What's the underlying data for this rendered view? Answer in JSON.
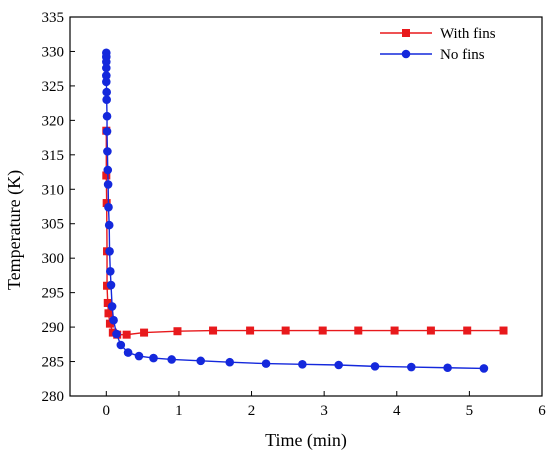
{
  "chart_data": {
    "type": "line",
    "title": "",
    "xlabel": "Time (min)",
    "ylabel": "Temperature (K)",
    "xlim": [
      -0.5,
      6
    ],
    "ylim": [
      280,
      335
    ],
    "xticks": [
      0,
      1,
      2,
      3,
      4,
      5,
      6
    ],
    "yticks": [
      280,
      285,
      290,
      295,
      300,
      305,
      310,
      315,
      320,
      325,
      330,
      335
    ],
    "grid": false,
    "legend_position": "top-right",
    "series": [
      {
        "name": "With fins",
        "color": "#e8191c",
        "marker": "square",
        "points": [
          [
            0.0,
            318.5
          ],
          [
            0.0,
            312.0
          ],
          [
            0.005,
            308.0
          ],
          [
            0.01,
            301.0
          ],
          [
            0.01,
            296.0
          ],
          [
            0.02,
            293.5
          ],
          [
            0.03,
            292.0
          ],
          [
            0.05,
            290.5
          ],
          [
            0.09,
            289.2
          ],
          [
            0.15,
            288.9
          ],
          [
            0.28,
            288.9
          ],
          [
            0.52,
            289.2
          ],
          [
            0.98,
            289.4
          ],
          [
            1.47,
            289.5
          ],
          [
            1.98,
            289.5
          ],
          [
            2.47,
            289.5
          ],
          [
            2.98,
            289.5
          ],
          [
            3.47,
            289.5
          ],
          [
            3.97,
            289.5
          ],
          [
            4.47,
            289.5
          ],
          [
            4.97,
            289.5
          ],
          [
            5.47,
            289.5
          ]
        ]
      },
      {
        "name": "No fins",
        "color": "#1428dc",
        "marker": "circle",
        "points": [
          [
            0.0,
            329.8
          ],
          [
            0.0,
            329.2
          ],
          [
            0.0,
            328.5
          ],
          [
            0.0,
            327.6
          ],
          [
            0.0,
            326.5
          ],
          [
            0.0,
            325.6
          ],
          [
            0.005,
            324.1
          ],
          [
            0.005,
            323.0
          ],
          [
            0.01,
            320.6
          ],
          [
            0.01,
            318.4
          ],
          [
            0.015,
            315.5
          ],
          [
            0.02,
            312.8
          ],
          [
            0.025,
            310.7
          ],
          [
            0.03,
            307.4
          ],
          [
            0.04,
            304.8
          ],
          [
            0.045,
            301.0
          ],
          [
            0.055,
            298.1
          ],
          [
            0.065,
            296.1
          ],
          [
            0.08,
            293.0
          ],
          [
            0.1,
            291.0
          ],
          [
            0.14,
            289.0
          ],
          [
            0.2,
            287.4
          ],
          [
            0.3,
            286.3
          ],
          [
            0.45,
            285.8
          ],
          [
            0.65,
            285.5
          ],
          [
            0.9,
            285.3
          ],
          [
            1.3,
            285.1
          ],
          [
            1.7,
            284.9
          ],
          [
            2.2,
            284.7
          ],
          [
            2.7,
            284.6
          ],
          [
            3.2,
            284.5
          ],
          [
            3.7,
            284.3
          ],
          [
            4.2,
            284.2
          ],
          [
            4.7,
            284.1
          ],
          [
            5.2,
            284.0
          ]
        ]
      }
    ]
  }
}
